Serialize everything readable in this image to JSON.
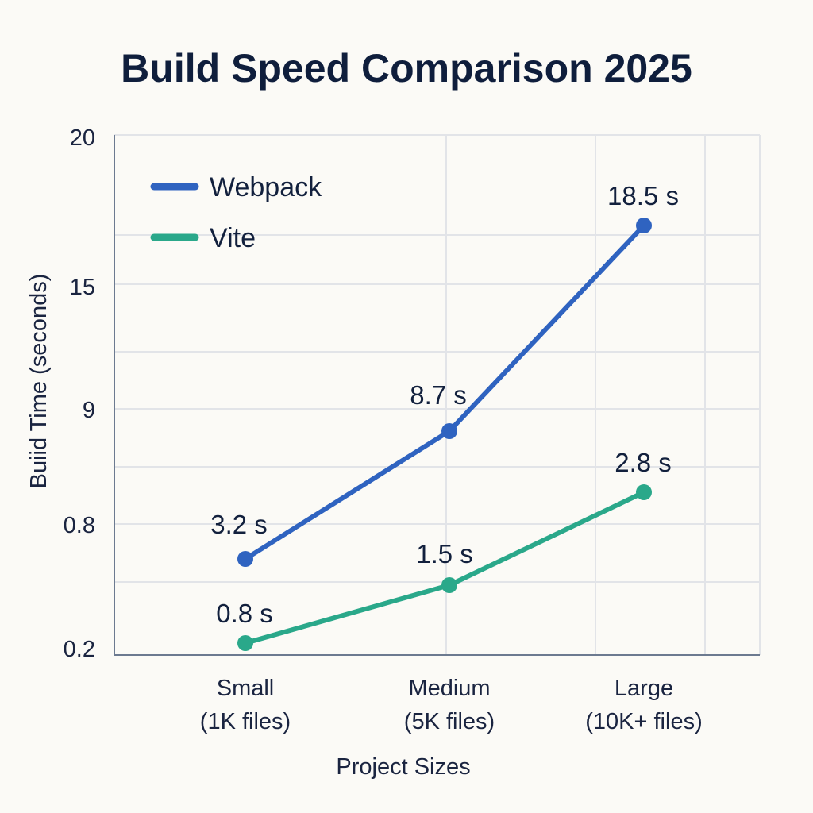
{
  "chart_data": {
    "type": "line",
    "title": "Build Speed Comparison 2025",
    "xlabel": "Project Sizes",
    "ylabel": "Buiid Time (seconds)",
    "categories": [
      [
        "Small",
        "(1K files)"
      ],
      [
        "Medium",
        "(5K files)"
      ],
      [
        "Large",
        "(10K+ files)"
      ]
    ],
    "y_tick_labels": [
      "20",
      "15",
      "9",
      "0.8",
      "0.2"
    ],
    "grid": true,
    "legend_position": "top-left",
    "series": [
      {
        "name": "Webpack",
        "color": "#2f63c0",
        "values": [
          3.2,
          8.7,
          18.5
        ],
        "labels": [
          "3.2 s",
          "8.7 s",
          "18.5 s"
        ]
      },
      {
        "name": "Vite",
        "color": "#2aa88a",
        "values": [
          0.8,
          1.5,
          2.8
        ],
        "labels": [
          "0.8 s",
          "1.5 s",
          "2.8 s"
        ]
      }
    ]
  }
}
